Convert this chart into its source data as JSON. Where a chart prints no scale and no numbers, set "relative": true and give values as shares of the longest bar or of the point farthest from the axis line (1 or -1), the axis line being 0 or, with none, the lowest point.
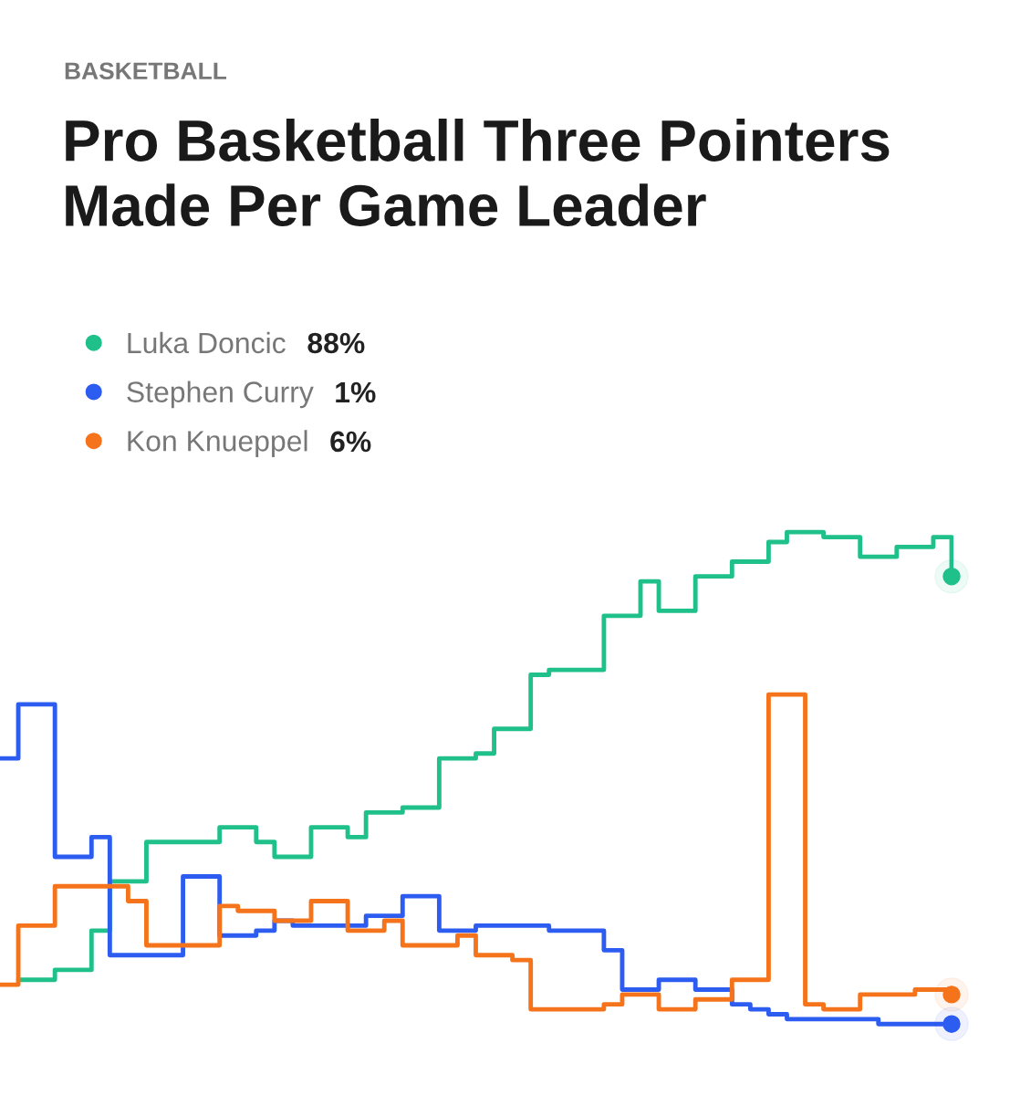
{
  "chart_data": {
    "type": "step",
    "subtitle": "BASKETBALL",
    "title": "Pro Basketball Three Pointers Made Per Game Leader",
    "relative": true,
    "legend": "top left",
    "categories": [
      null,
      null,
      null,
      null,
      null,
      null,
      null,
      null,
      null,
      null,
      null,
      null,
      null,
      null,
      null,
      null,
      null,
      null,
      null,
      null,
      null,
      null,
      null,
      null,
      null,
      null,
      null,
      null,
      null,
      null,
      null,
      null,
      null,
      null,
      null,
      null,
      null,
      null,
      null,
      null,
      null,
      null,
      null,
      null,
      null,
      null,
      null,
      null,
      null,
      null,
      null,
      null,
      null
    ],
    "series": [
      {
        "name": "Luka Doncic",
        "color": "#1fc08a",
        "values": [
          null,
          0.09,
          0.09,
          0.11,
          0.11,
          0.19,
          0.29,
          0.29,
          0.37,
          0.37,
          0.37,
          0.37,
          0.4,
          0.4,
          0.37,
          0.34,
          0.34,
          0.4,
          0.4,
          0.38,
          0.43,
          0.43,
          0.44,
          0.44,
          0.54,
          0.54,
          0.55,
          0.6,
          0.6,
          0.71,
          0.72,
          0.72,
          0.72,
          0.83,
          0.83,
          0.9,
          0.84,
          0.84,
          0.91,
          0.91,
          0.94,
          0.94,
          0.98,
          1.0,
          1.0,
          0.99,
          0.99,
          0.95,
          0.95,
          0.97,
          0.97,
          0.99,
          0.91
        ]
      },
      {
        "name": "Stephen Curry",
        "color": "#2d5cf0",
        "values": [
          0.54,
          0.65,
          0.65,
          0.34,
          0.34,
          0.38,
          0.14,
          0.14,
          0.14,
          0.14,
          0.3,
          0.3,
          0.18,
          0.18,
          0.19,
          0.21,
          0.2,
          0.2,
          0.2,
          0.2,
          0.22,
          0.22,
          0.26,
          0.26,
          0.19,
          0.19,
          0.2,
          0.2,
          0.2,
          0.2,
          0.19,
          0.19,
          0.19,
          0.15,
          0.07,
          0.07,
          0.09,
          0.09,
          0.07,
          0.07,
          0.04,
          0.03,
          0.02,
          0.01,
          0.01,
          0.01,
          0.01,
          0.01,
          0.0,
          0.0,
          0.0,
          0.0,
          0.0
        ]
      },
      {
        "name": "Kon Knueppel",
        "color": "#f5741b",
        "values": [
          0.08,
          0.2,
          0.2,
          0.28,
          0.28,
          0.28,
          0.28,
          0.25,
          0.16,
          0.16,
          0.16,
          0.16,
          0.24,
          0.23,
          0.23,
          0.21,
          0.21,
          0.25,
          0.25,
          0.19,
          0.19,
          0.21,
          0.16,
          0.16,
          0.16,
          0.18,
          0.14,
          0.14,
          0.13,
          0.03,
          0.03,
          0.03,
          0.03,
          0.04,
          0.06,
          0.06,
          0.03,
          0.03,
          0.05,
          0.05,
          0.09,
          0.09,
          0.67,
          0.67,
          0.04,
          0.03,
          0.03,
          0.06,
          0.06,
          0.06,
          0.07,
          0.07,
          0.06
        ]
      }
    ],
    "annotations": [
      "88%",
      "1%",
      "6%"
    ]
  }
}
